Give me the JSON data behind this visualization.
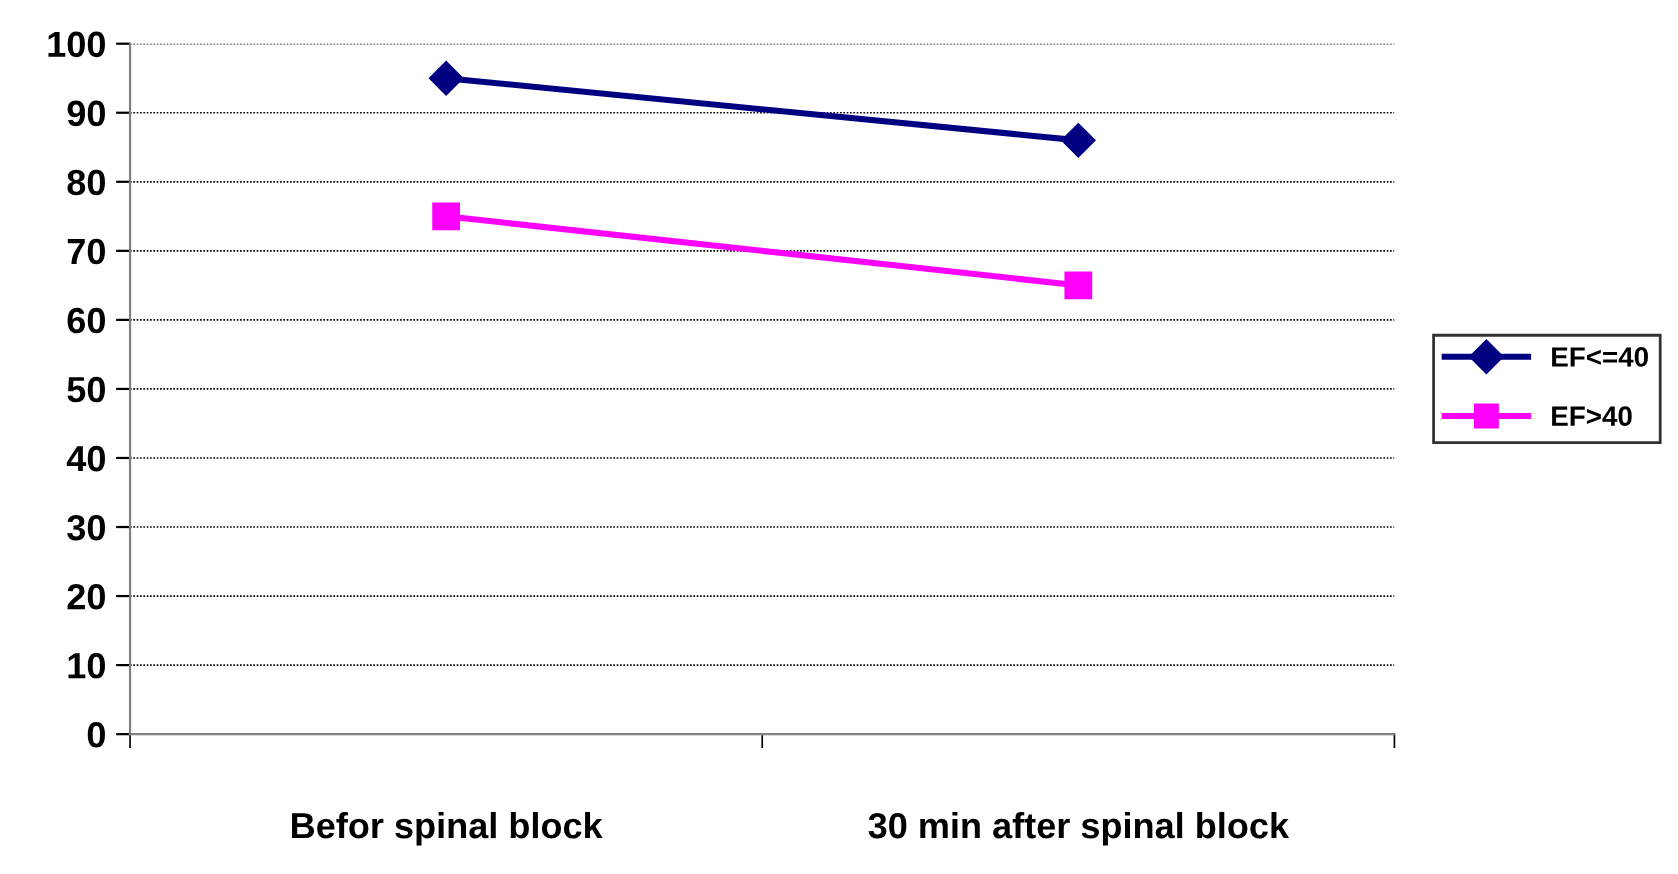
{
  "chart_data": {
    "type": "line",
    "categories": [
      "Befor spinal block",
      "30 min after spinal block"
    ],
    "series": [
      {
        "name": "EF<=40",
        "color": "#000080",
        "values": [
          95,
          86
        ],
        "marker": "diamond"
      },
      {
        "name": "EF>40",
        "color": "#ff00ff",
        "values": [
          75,
          65
        ],
        "marker": "square"
      }
    ],
    "ylim": [
      0,
      100
    ],
    "yticks": [
      0,
      10,
      20,
      30,
      40,
      50,
      60,
      70,
      80,
      90,
      100
    ],
    "grid": "y",
    "legend": "right",
    "line_style": "solid"
  }
}
